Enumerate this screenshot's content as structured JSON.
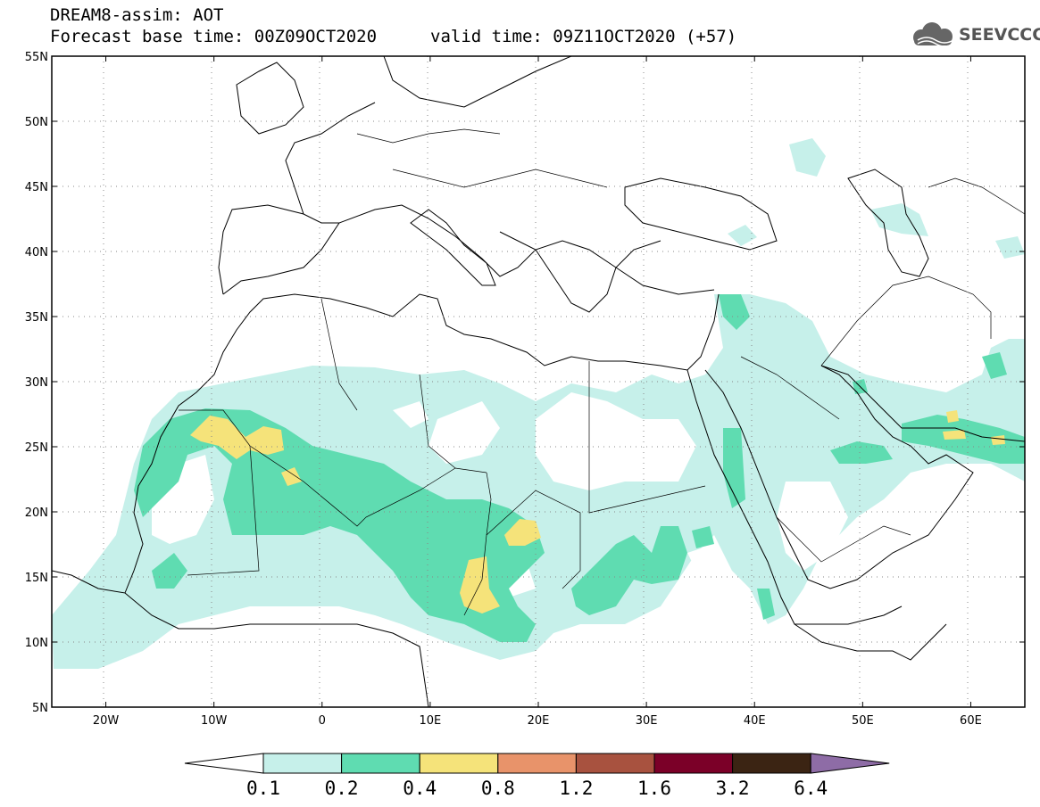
{
  "header": {
    "line1": "DREAM8-assim: AOT",
    "line2": "Forecast base time: 00Z09OCT2020",
    "valid": "valid time: 09Z11OCT2020 (+57)"
  },
  "logo": {
    "text": "SEEVCCC",
    "icon": "cloud-logo-icon"
  },
  "map": {
    "projection": "lat-lon",
    "lon_range": [
      -25,
      65
    ],
    "lat_range": [
      5,
      55
    ],
    "lat_ticks": [
      "5N",
      "10N",
      "15N",
      "20N",
      "25N",
      "30N",
      "35N",
      "40N",
      "45N",
      "50N",
      "55N"
    ],
    "lon_ticks": [
      "20W",
      "10W",
      "0",
      "10E",
      "20E",
      "30E",
      "40E",
      "50E",
      "60E"
    ],
    "grid": "dotted"
  },
  "colorbar": {
    "labels": [
      "0.1",
      "0.2",
      "0.4",
      "0.8",
      "1.2",
      "1.6",
      "3.2",
      "6.4"
    ],
    "colors": [
      "#ffffff",
      "#c6f0ea",
      "#5fdcb1",
      "#f5e37a",
      "#e8936a",
      "#a8523f",
      "#7b0028",
      "#3b2413",
      "#8e6ca6"
    ]
  }
}
